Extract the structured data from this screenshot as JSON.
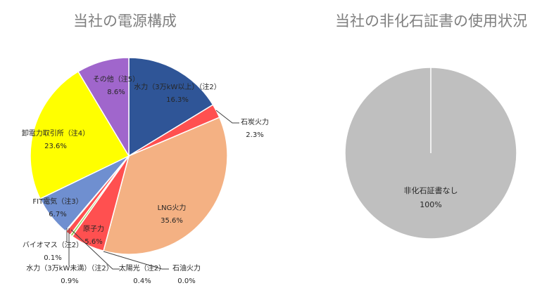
{
  "charts": {
    "left_title": "当社の電源構成",
    "right_title": "当社の非化石証書の使用状況"
  },
  "chart_data": [
    {
      "type": "pie",
      "title": "当社の電源構成",
      "start_angle_deg": 0,
      "direction": "clockwise",
      "slices": [
        {
          "label": "水力（3万kW以上）（注2）",
          "value": 16.3,
          "display": "16.3%",
          "color": "#2f5597"
        },
        {
          "label": "石炭火力",
          "value": 2.3,
          "display": "2.3%",
          "color": "#ff5050"
        },
        {
          "label": "LNG火力",
          "value": 35.6,
          "display": "35.6%",
          "color": "#f4b183"
        },
        {
          "label": "石油火力",
          "value": 0.0,
          "display": "0.0%",
          "color": "#c00000"
        },
        {
          "label": "原子力",
          "value": 5.6,
          "display": "5.6%",
          "color": "#ff5050"
        },
        {
          "label": "太陽光（注2）",
          "value": 0.4,
          "display": "0.4%",
          "color": "#92d050"
        },
        {
          "label": "水力（3万kW未満）（注2）",
          "value": 0.9,
          "display": "0.9%",
          "color": "#ff5050"
        },
        {
          "label": "バイオマス（注2）",
          "value": 0.1,
          "display": "0.1%",
          "color": "#70ad47"
        },
        {
          "label": "FIT電気（注3）",
          "value": 6.7,
          "display": "6.7%",
          "color": "#6f8fd0"
        },
        {
          "label": "卸電力取引所（注4）",
          "value": 23.6,
          "display": "23.6%",
          "color": "#ffff00"
        },
        {
          "label": "その他（注5）",
          "value": 8.6,
          "display": "8.6%",
          "color": "#a066cc"
        }
      ]
    },
    {
      "type": "pie",
      "title": "当社の非化石証書の使用状況",
      "slices": [
        {
          "label": "非化石証書なし",
          "value": 100,
          "display": "100%",
          "color": "#bfbfbf"
        }
      ]
    }
  ],
  "labels": {
    "hydro_large": {
      "name": "水力（3万kW以上）（注2）",
      "pct": "16.3%"
    },
    "coal": {
      "name": "石炭火力",
      "pct": "2.3%"
    },
    "lng": {
      "name": "LNG火力",
      "pct": "35.6%"
    },
    "oil": {
      "name": "石油火力",
      "pct": "0.0%"
    },
    "nuclear": {
      "name": "原子力",
      "pct": "5.6%"
    },
    "solar": {
      "name": "太陽光（注2）",
      "pct": "0.4%"
    },
    "hydro_small": {
      "name": "水力（3万kW未満）（注2）",
      "pct": "0.9%"
    },
    "biomass": {
      "name": "バイオマス（注2）",
      "pct": "0.1%"
    },
    "fit": {
      "name": "FIT電気（注3）",
      "pct": "6.7%"
    },
    "jepx": {
      "name": "卸電力取引所（注4）",
      "pct": "23.6%"
    },
    "other": {
      "name": "その他（注5）",
      "pct": "8.6%"
    },
    "nonfossil": {
      "name": "非化石証書なし",
      "pct": "100%"
    }
  }
}
